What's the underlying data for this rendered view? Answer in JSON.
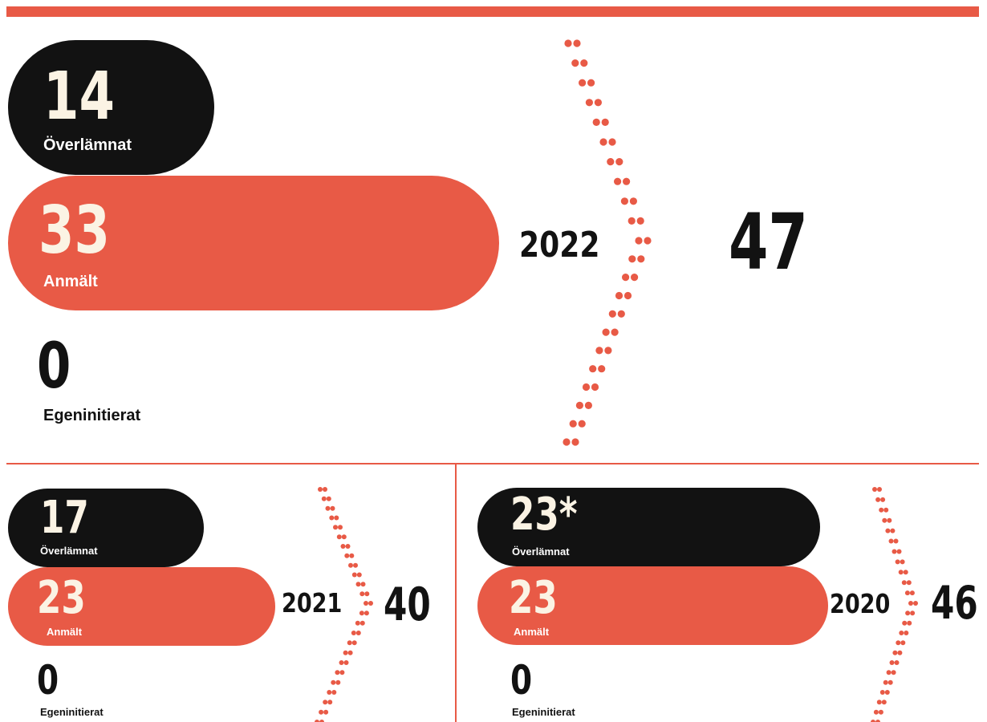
{
  "chart_data": [
    {
      "type": "bar",
      "title": "2022",
      "total": "47",
      "categories": [
        "Överlämnat",
        "Anmält",
        "Egeninitierat"
      ],
      "values": [
        "14",
        "33",
        "0"
      ],
      "colors": {
        "Överlämnat": "#121212",
        "Anmält": "#e85a46",
        "Egeninitierat": "#121212"
      }
    },
    {
      "type": "bar",
      "title": "2021",
      "total": "40",
      "categories": [
        "Överlämnat",
        "Anmält",
        "Egeninitierat"
      ],
      "values": [
        "17",
        "23",
        "0"
      ],
      "colors": {
        "Överlämnat": "#121212",
        "Anmält": "#e85a46",
        "Egeninitierat": "#121212"
      }
    },
    {
      "type": "bar",
      "title": "2020",
      "total": "46",
      "categories": [
        "Överlämnat",
        "Anmält",
        "Egeninitierat"
      ],
      "values": [
        "23*",
        "23",
        "0"
      ],
      "colors": {
        "Överlämnat": "#121212",
        "Anmält": "#e85a46",
        "Egeninitierat": "#121212"
      }
    }
  ],
  "theme": {
    "accent": "#e85a46",
    "dark": "#121212",
    "cream": "#fbf3e4"
  }
}
